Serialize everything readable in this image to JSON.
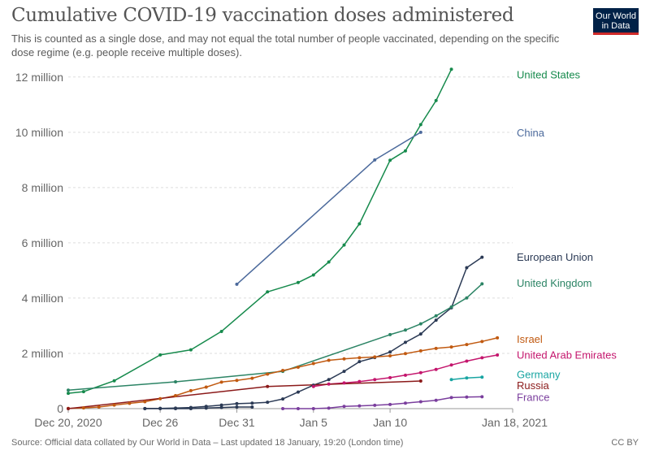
{
  "header": {
    "title": "Cumulative COVID-19 vaccination doses administered",
    "subtitle": "This is counted as a single dose, and may not equal the total number of people vaccinated, depending on the specific dose regime (e.g. people receive multiple doses).",
    "logo_line1": "Our World",
    "logo_line2": "in Data"
  },
  "footer": {
    "source": "Source: Official data collated by Our World in Data – Last updated 18 January, 19:20 (London time)",
    "license": "CC BY"
  },
  "chart_data": {
    "type": "line",
    "title": "Cumulative COVID-19 vaccination doses administered",
    "x_start_date": "2020-12-20",
    "x_tick_labels": [
      "Dec 20, 2020",
      "Dec 26",
      "Dec 31",
      "Jan 5",
      "Jan 10",
      "Jan 18, 2021"
    ],
    "x_tick_values": [
      0,
      6,
      11,
      16,
      21,
      29
    ],
    "y_tick_labels": [
      "0",
      "2 million",
      "4 million",
      "6 million",
      "8 million",
      "10 million",
      "12 million"
    ],
    "y_tick_values": [
      0,
      2000000,
      4000000,
      6000000,
      8000000,
      10000000,
      12000000
    ],
    "xlim": [
      0,
      29
    ],
    "ylim": [
      0,
      12200000
    ],
    "grid": "horizontal dashed",
    "legend": "labels at right end of lines",
    "series": [
      {
        "name": "United States",
        "color": "#168a4c",
        "x": [
          0,
          1,
          3,
          6,
          8,
          10,
          13,
          15,
          16,
          17,
          18,
          19,
          21,
          22,
          23,
          24,
          25
        ],
        "y": [
          556208,
          614117,
          1008025,
          1944585,
          2127143,
          2794588,
          4225756,
          4563260,
          4836469,
          5306797,
          5919418,
          6688231,
          8987322,
          9327138,
          10278462,
          11148991,
          12279180
        ]
      },
      {
        "name": "China",
        "color": "#4c6a9c",
        "x": [
          11,
          20,
          23
        ],
        "y": [
          4500000,
          9000000,
          10000000
        ]
      },
      {
        "name": "European Union",
        "color": "#2b3a55",
        "x": [
          5,
          6,
          7,
          8,
          9,
          10,
          11,
          12,
          13,
          14,
          15,
          16,
          17,
          18,
          19,
          20,
          21,
          22,
          23,
          24,
          25,
          26,
          27
        ],
        "y": [
          5000,
          10000,
          20000,
          40000,
          80000,
          130000,
          180000,
          200000,
          230000,
          350000,
          600000,
          850000,
          1050000,
          1350000,
          1700000,
          1850000,
          2050000,
          2400000,
          2700000,
          3200000,
          3650000,
          5100000,
          5480000
        ]
      },
      {
        "name": "United Kingdom",
        "color": "#2c8465",
        "x": [
          0,
          7,
          14,
          21,
          22,
          23,
          24,
          25,
          26,
          27
        ],
        "y": [
          669674,
          970000,
          1350000,
          2677971,
          2843815,
          3067541,
          3357583,
          3678180,
          4006530,
          4514802
        ]
      },
      {
        "name": "Israel",
        "color": "#c15a11",
        "x": [
          0,
          1,
          2,
          3,
          4,
          5,
          6,
          7,
          8,
          9,
          10,
          11,
          12,
          13,
          14,
          15,
          16,
          17,
          18,
          19,
          20,
          21,
          22,
          23,
          24,
          25,
          26,
          27,
          28
        ],
        "y": [
          7000,
          25000,
          60000,
          130000,
          190000,
          250000,
          360000,
          470000,
          650000,
          780000,
          960000,
          1020000,
          1100000,
          1250000,
          1380000,
          1500000,
          1630000,
          1750000,
          1800000,
          1840000,
          1870000,
          1910000,
          1990000,
          2090000,
          2180000,
          2230000,
          2320000,
          2430000,
          2560000
        ]
      },
      {
        "name": "United Arab Emirates",
        "color": "#c4166d",
        "x": [
          16,
          17,
          18,
          19,
          20,
          21,
          22,
          23,
          24,
          25,
          26,
          27,
          28
        ],
        "y": [
          800000,
          890000,
          930000,
          980000,
          1050000,
          1120000,
          1210000,
          1300000,
          1420000,
          1580000,
          1720000,
          1840000,
          1940000
        ]
      },
      {
        "name": "Germany",
        "color": "#18a5a2",
        "x": [
          25,
          26,
          27
        ],
        "y": [
          1050000,
          1110000,
          1140000
        ]
      },
      {
        "name": "Russia",
        "color": "#8b1a1a",
        "x": [
          0,
          13,
          23
        ],
        "y": [
          0,
          800000,
          1000000
        ]
      },
      {
        "name": "France",
        "color": "#7a3e9d",
        "x": [
          14,
          15,
          16,
          17,
          18,
          19,
          20,
          21,
          22,
          23,
          24,
          25,
          26,
          27
        ],
        "y": [
          0,
          0,
          0,
          20000,
          80000,
          100000,
          120000,
          150000,
          200000,
          250000,
          300000,
          400000,
          420000,
          430000
        ]
      },
      {
        "name": "",
        "color": "#2b3a55",
        "x": [
          5,
          6,
          7,
          8,
          9,
          10,
          11,
          12
        ],
        "y": [
          0,
          0,
          0,
          0,
          20000,
          40000,
          60000,
          60000
        ]
      }
    ],
    "labels": [
      {
        "text": "United States",
        "series": 0,
        "y": 12100000
      },
      {
        "text": "China",
        "series": 1,
        "y": 10000000
      },
      {
        "text": "European Union",
        "series": 2,
        "y": 5500000
      },
      {
        "text": "United Kingdom",
        "series": 3,
        "y": 4550000
      },
      {
        "text": "Israel",
        "series": 4,
        "y": 2530000
      },
      {
        "text": "United Arab Emirates",
        "series": 5,
        "y": 1950000
      },
      {
        "text": "Germany",
        "series": 6,
        "y": 1250000
      },
      {
        "text": "Russia",
        "series": 7,
        "y": 850000
      },
      {
        "text": "France",
        "series": 8,
        "y": 420000
      }
    ]
  }
}
